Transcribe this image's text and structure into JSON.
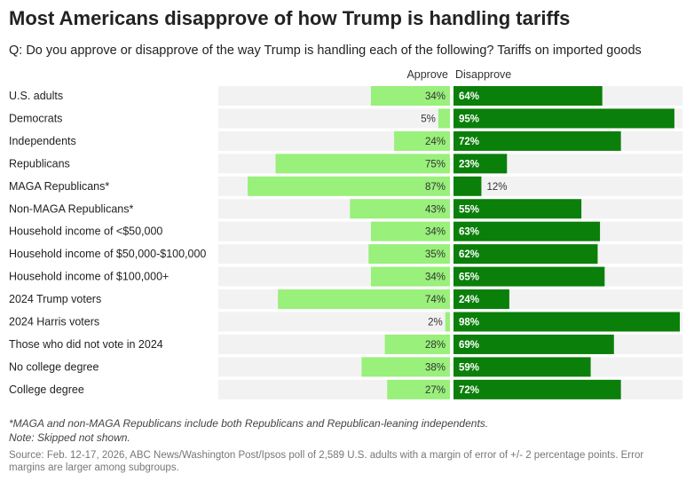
{
  "title": "Most Americans disapprove of how Trump is handling tariffs",
  "subtitle": "Q: Do you approve or disapprove of the way Trump is handling each of the following? Tariffs on imported goods",
  "legend": {
    "approve": "Approve",
    "disapprove": "Disapprove"
  },
  "colors": {
    "approve": "#99f07b",
    "disapprove": "#0a7f0a",
    "track": "#f2f2f2",
    "approve_text": "#333333",
    "disapprove_text_inside": "#ffffff",
    "disapprove_text_outside": "#333333"
  },
  "chart_data": {
    "type": "bar",
    "orientation": "horizontal-diverging",
    "title": "Most Americans disapprove of how Trump is handling tariffs",
    "categories": [
      "U.S. adults",
      "Democrats",
      "Independents",
      "Republicans",
      "MAGA Republicans*",
      "Non-MAGA Republicans*",
      "Household income of <$50,000",
      "Household income of $50,000-$100,000",
      "Household income of $100,000+",
      "2024 Trump voters",
      "2024 Harris voters",
      "Those who did not vote in 2024",
      "No college degree",
      "College degree"
    ],
    "series": [
      {
        "name": "Approve",
        "values": [
          34,
          5,
          24,
          75,
          87,
          43,
          34,
          35,
          34,
          74,
          2,
          28,
          38,
          27
        ]
      },
      {
        "name": "Disapprove",
        "values": [
          64,
          95,
          72,
          23,
          12,
          55,
          63,
          62,
          65,
          24,
          98,
          69,
          59,
          72
        ]
      }
    ],
    "value_suffix": "%",
    "xlim": [
      0,
      100
    ]
  },
  "notes": [
    "*MAGA and non-MAGA Republicans include both Republicans and Republican-leaning independents.",
    "Note: Skipped not shown."
  ],
  "source": "Source: Feb. 12-17, 2026, ABC News/Washington Post/Ipsos poll of 2,589 U.S. adults with a margin of error of +/- 2 percentage points. Error margins are larger among subgroups."
}
